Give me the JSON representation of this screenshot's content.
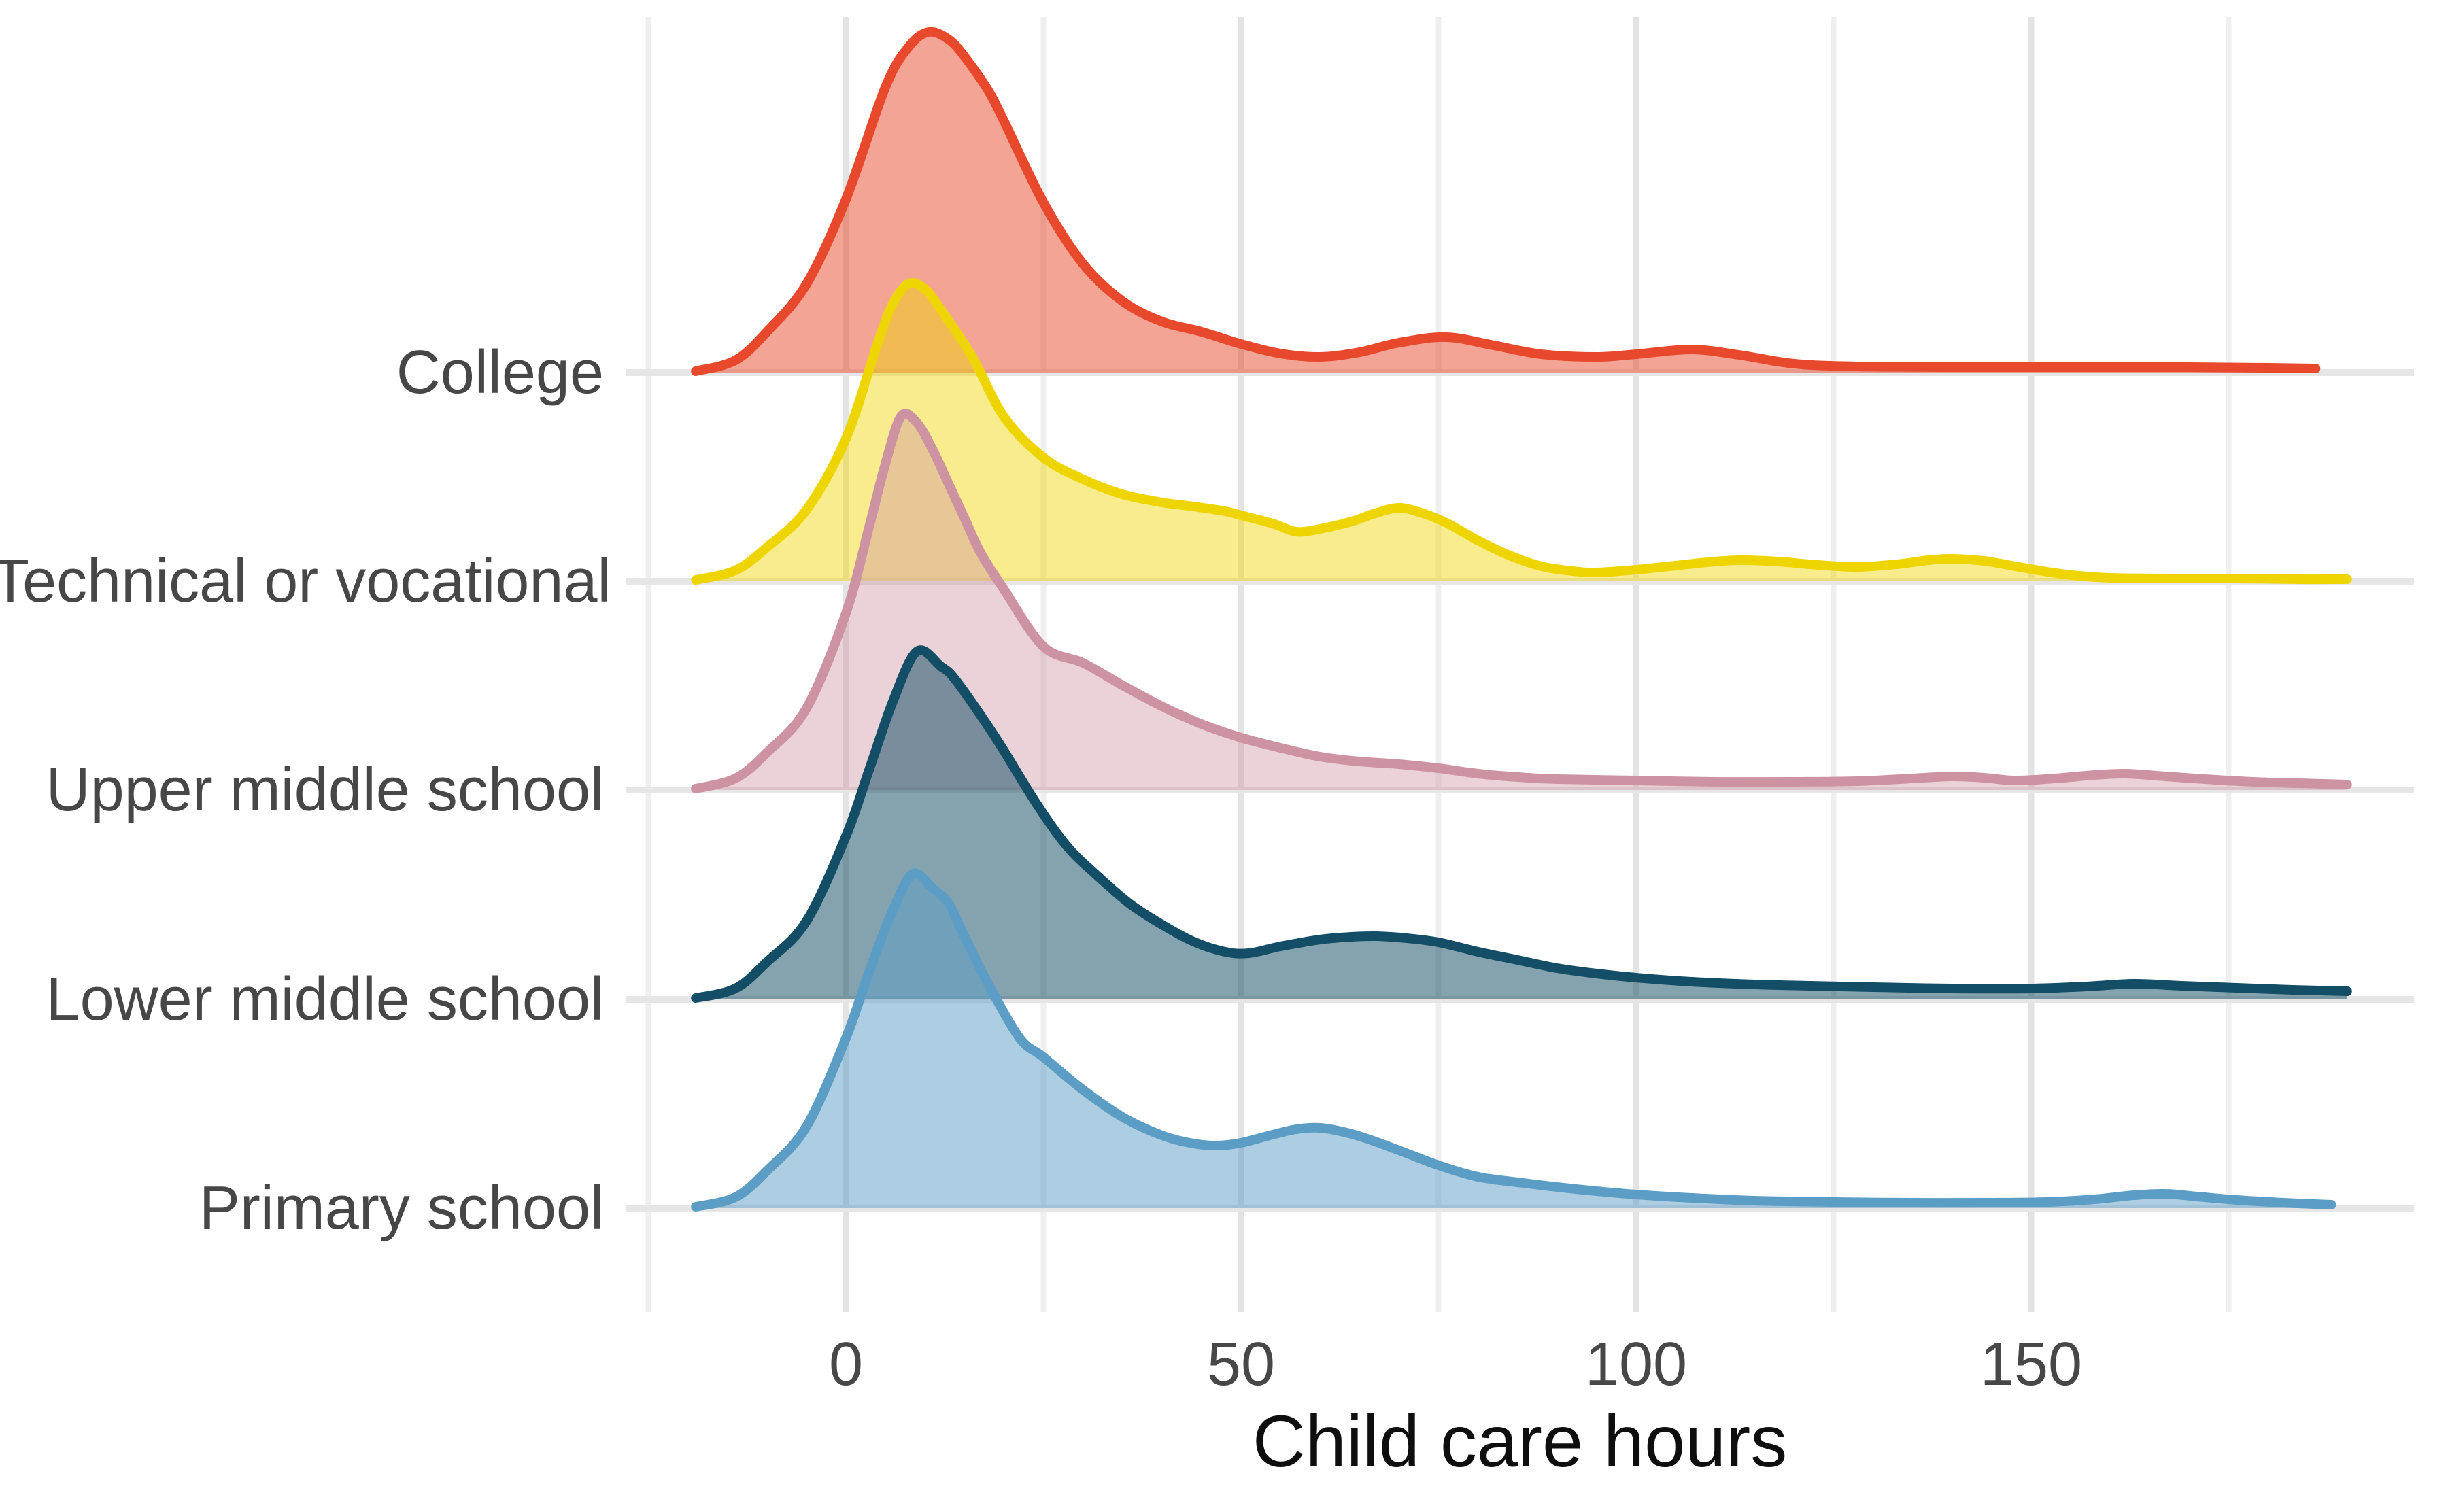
{
  "chart_data": {
    "type": "area",
    "variant": "ridgeline-density",
    "title": "",
    "xlabel": "Child care hours",
    "ylabel": "",
    "legend_position": "none",
    "grid": "on",
    "x_axis": {
      "tick_labels": [
        "0",
        "50",
        "100",
        "150"
      ],
      "tick_values": [
        0,
        50,
        100,
        150
      ],
      "minor_tick_values": [
        -25,
        25,
        75,
        125,
        175
      ],
      "xlim": [
        -28,
        198
      ]
    },
    "categories_top_to_bottom": [
      "College",
      "Technical or vocational",
      "Upper middle school",
      "Lower middle school",
      "Primary school"
    ],
    "colors": {
      "axis_text": "#474747",
      "axis_title": "#0e0e0e",
      "grid_major_h": "#e6e6e6",
      "grid_major_v": "#e3e3e3",
      "grid_minor_v": "#efefef"
    },
    "height_units": "relative density height (px above each ridge baseline at 3600px render width)",
    "series": [
      {
        "name": "College",
        "stroke": "#E8492C",
        "fill": "rgba(232,73,44,0.50)",
        "peak_hours": 10.5,
        "points": [
          [
            -19,
            2
          ],
          [
            -14,
            18
          ],
          [
            -10,
            60
          ],
          [
            -5,
            130
          ],
          [
            0,
            255
          ],
          [
            5,
            420
          ],
          [
            8,
            480
          ],
          [
            10.5,
            501
          ],
          [
            13,
            490
          ],
          [
            15,
            465
          ],
          [
            18,
            415
          ],
          [
            20,
            370
          ],
          [
            25,
            250
          ],
          [
            30,
            160
          ],
          [
            35,
            105
          ],
          [
            40,
            75
          ],
          [
            45,
            60
          ],
          [
            50,
            42
          ],
          [
            55,
            28
          ],
          [
            60,
            23
          ],
          [
            65,
            30
          ],
          [
            70,
            44
          ],
          [
            76,
            52
          ],
          [
            82,
            40
          ],
          [
            88,
            27
          ],
          [
            95,
            23
          ],
          [
            100,
            27
          ],
          [
            107,
            34
          ],
          [
            113,
            26
          ],
          [
            120,
            13
          ],
          [
            128,
            9
          ],
          [
            140,
            8
          ],
          [
            155,
            8
          ],
          [
            170,
            8
          ],
          [
            180,
            7
          ],
          [
            186,
            6
          ]
        ]
      },
      {
        "name": "Technical or vocational",
        "stroke": "#EFD500",
        "fill": "rgba(239,213,0,0.45)",
        "peak_hours": 8,
        "points": [
          [
            -19,
            2
          ],
          [
            -14,
            16
          ],
          [
            -10,
            50
          ],
          [
            -5,
            105
          ],
          [
            0,
            210
          ],
          [
            4,
            350
          ],
          [
            6,
            410
          ],
          [
            8,
            438
          ],
          [
            10,
            430
          ],
          [
            12,
            400
          ],
          [
            16,
            330
          ],
          [
            20,
            242
          ],
          [
            25,
            182
          ],
          [
            30,
            150
          ],
          [
            35,
            128
          ],
          [
            40,
            116
          ],
          [
            44,
            110
          ],
          [
            48,
            103
          ],
          [
            50,
            97
          ],
          [
            54,
            85
          ],
          [
            57,
            73
          ],
          [
            60,
            77
          ],
          [
            64,
            88
          ],
          [
            67,
            100
          ],
          [
            70,
            108
          ],
          [
            73,
            100
          ],
          [
            76,
            86
          ],
          [
            80,
            60
          ],
          [
            84,
            38
          ],
          [
            88,
            22
          ],
          [
            92,
            15
          ],
          [
            95,
            13
          ],
          [
            100,
            17
          ],
          [
            105,
            23
          ],
          [
            109,
            28
          ],
          [
            113,
            31
          ],
          [
            118,
            29
          ],
          [
            123,
            24
          ],
          [
            128,
            21
          ],
          [
            133,
            25
          ],
          [
            137,
            31
          ],
          [
            140,
            33
          ],
          [
            144,
            30
          ],
          [
            148,
            22
          ],
          [
            152,
            14
          ],
          [
            156,
            8
          ],
          [
            160,
            5
          ],
          [
            168,
            4
          ],
          [
            176,
            4
          ],
          [
            184,
            3
          ],
          [
            190,
            3
          ]
        ]
      },
      {
        "name": "Upper middle school",
        "stroke": "#CE93A3",
        "fill": "rgba(206,147,163,0.42)",
        "peak_hours": 7,
        "points": [
          [
            -19,
            2
          ],
          [
            -14,
            17
          ],
          [
            -10,
            55
          ],
          [
            -5,
            120
          ],
          [
            0,
            260
          ],
          [
            3,
            390
          ],
          [
            5,
            480
          ],
          [
            7,
            550
          ],
          [
            9,
            540
          ],
          [
            11,
            500
          ],
          [
            13,
            450
          ],
          [
            15,
            400
          ],
          [
            17,
            350
          ],
          [
            20,
            295
          ],
          [
            25,
            211
          ],
          [
            30,
            187
          ],
          [
            35,
            154
          ],
          [
            40,
            123
          ],
          [
            45,
            97
          ],
          [
            50,
            77
          ],
          [
            55,
            62
          ],
          [
            60,
            49
          ],
          [
            65,
            42
          ],
          [
            70,
            38
          ],
          [
            75,
            32
          ],
          [
            80,
            24
          ],
          [
            85,
            19
          ],
          [
            90,
            16
          ],
          [
            100,
            14
          ],
          [
            110,
            12
          ],
          [
            120,
            12
          ],
          [
            128,
            13
          ],
          [
            135,
            17
          ],
          [
            140,
            20
          ],
          [
            144,
            18
          ],
          [
            148,
            14
          ],
          [
            153,
            17
          ],
          [
            158,
            22
          ],
          [
            162,
            24
          ],
          [
            167,
            20
          ],
          [
            172,
            16
          ],
          [
            178,
            12
          ],
          [
            184,
            10
          ],
          [
            190,
            8
          ]
        ]
      },
      {
        "name": "Lower middle school",
        "stroke": "#134E66",
        "fill": "rgba(19,78,102,0.52)",
        "peak_hours": 9,
        "points": [
          [
            -19,
            2
          ],
          [
            -14,
            16
          ],
          [
            -10,
            55
          ],
          [
            -5,
            115
          ],
          [
            0,
            240
          ],
          [
            3,
            340
          ],
          [
            6,
            440
          ],
          [
            9,
            512
          ],
          [
            12,
            490
          ],
          [
            14,
            468
          ],
          [
            19,
            384
          ],
          [
            24,
            290
          ],
          [
            28,
            225
          ],
          [
            32,
            180
          ],
          [
            36,
            140
          ],
          [
            40,
            110
          ],
          [
            44,
            85
          ],
          [
            48,
            70
          ],
          [
            51,
            68
          ],
          [
            55,
            78
          ],
          [
            60,
            88
          ],
          [
            64,
            92
          ],
          [
            67,
            93
          ],
          [
            71,
            90
          ],
          [
            75,
            84
          ],
          [
            80,
            70
          ],
          [
            85,
            58
          ],
          [
            90,
            46
          ],
          [
            95,
            38
          ],
          [
            100,
            32
          ],
          [
            107,
            26
          ],
          [
            115,
            22
          ],
          [
            122,
            20
          ],
          [
            130,
            18
          ],
          [
            140,
            16
          ],
          [
            150,
            16
          ],
          [
            157,
            19
          ],
          [
            163,
            23
          ],
          [
            169,
            20
          ],
          [
            176,
            17
          ],
          [
            183,
            14
          ],
          [
            190,
            12
          ]
        ]
      },
      {
        "name": "Primary school",
        "stroke": "#5C9DC5",
        "fill": "rgba(92,157,197,0.50)",
        "peak_hours": 8.5,
        "points": [
          [
            -19,
            2
          ],
          [
            -14,
            16
          ],
          [
            -10,
            55
          ],
          [
            -5,
            120
          ],
          [
            0,
            250
          ],
          [
            3,
            350
          ],
          [
            6,
            440
          ],
          [
            8.5,
            492
          ],
          [
            11,
            470
          ],
          [
            13,
            448
          ],
          [
            15,
            400
          ],
          [
            18,
            330
          ],
          [
            22,
            250
          ],
          [
            25,
            222
          ],
          [
            30,
            174
          ],
          [
            35,
            134
          ],
          [
            40,
            107
          ],
          [
            44,
            95
          ],
          [
            47,
            92
          ],
          [
            50,
            96
          ],
          [
            54,
            108
          ],
          [
            57,
            116
          ],
          [
            60,
            118
          ],
          [
            63,
            112
          ],
          [
            66,
            102
          ],
          [
            70,
            85
          ],
          [
            75,
            63
          ],
          [
            80,
            46
          ],
          [
            85,
            38
          ],
          [
            90,
            31
          ],
          [
            95,
            25
          ],
          [
            100,
            20
          ],
          [
            107,
            15
          ],
          [
            115,
            11
          ],
          [
            125,
            9
          ],
          [
            135,
            8
          ],
          [
            145,
            8
          ],
          [
            152,
            9
          ],
          [
            158,
            13
          ],
          [
            163,
            19
          ],
          [
            167,
            21
          ],
          [
            171,
            17
          ],
          [
            176,
            12
          ],
          [
            182,
            8
          ],
          [
            188,
            5
          ]
        ]
      }
    ]
  }
}
